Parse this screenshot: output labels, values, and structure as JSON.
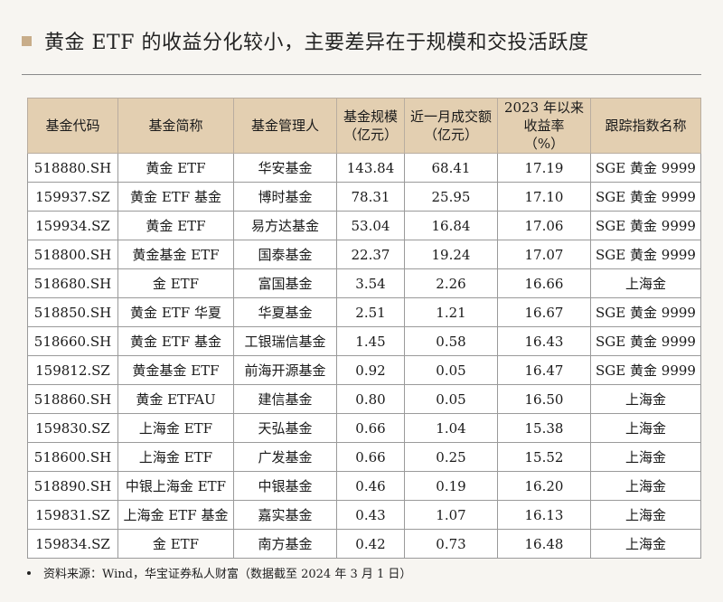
{
  "title": "黄金 ETF 的收益分化较小，主要差异在于规模和交投活跃度",
  "table": {
    "headers": [
      "基金代码",
      "基金简称",
      "基金管理人",
      "基金规模（亿元）",
      "近一月成交额（亿元）",
      "2023 年以来收益率（%）",
      "跟踪指数名称"
    ],
    "rows": [
      [
        "518880.SH",
        "黄金 ETF",
        "华安基金",
        "143.84",
        "68.41",
        "17.19",
        "SGE 黄金 9999"
      ],
      [
        "159937.SZ",
        "黄金 ETF 基金",
        "博时基金",
        "78.31",
        "25.95",
        "17.10",
        "SGE 黄金 9999"
      ],
      [
        "159934.SZ",
        "黄金 ETF",
        "易方达基金",
        "53.04",
        "16.84",
        "17.06",
        "SGE 黄金 9999"
      ],
      [
        "518800.SH",
        "黄金基金 ETF",
        "国泰基金",
        "22.37",
        "19.24",
        "17.07",
        "SGE 黄金 9999"
      ],
      [
        "518680.SH",
        "金 ETF",
        "富国基金",
        "3.54",
        "2.26",
        "16.66",
        "上海金"
      ],
      [
        "518850.SH",
        "黄金 ETF 华夏",
        "华夏基金",
        "2.51",
        "1.21",
        "16.67",
        "SGE 黄金 9999"
      ],
      [
        "518660.SH",
        "黄金 ETF 基金",
        "工银瑞信基金",
        "1.45",
        "0.58",
        "16.43",
        "SGE 黄金 9999"
      ],
      [
        "159812.SZ",
        "黄金基金 ETF",
        "前海开源基金",
        "0.92",
        "0.05",
        "16.47",
        "SGE 黄金 9999"
      ],
      [
        "518860.SH",
        "黄金 ETFAU",
        "建信基金",
        "0.80",
        "0.05",
        "16.50",
        "上海金"
      ],
      [
        "159830.SZ",
        "上海金 ETF",
        "天弘基金",
        "0.66",
        "1.04",
        "15.38",
        "上海金"
      ],
      [
        "518600.SH",
        "上海金 ETF",
        "广发基金",
        "0.66",
        "0.25",
        "15.52",
        "上海金"
      ],
      [
        "518890.SH",
        "中银上海金 ETF",
        "中银基金",
        "0.46",
        "0.19",
        "16.20",
        "上海金"
      ],
      [
        "159831.SZ",
        "上海金 ETF 基金",
        "嘉实基金",
        "0.43",
        "1.07",
        "16.13",
        "上海金"
      ],
      [
        "159834.SZ",
        "金 ETF",
        "南方基金",
        "0.42",
        "0.73",
        "16.48",
        "上海金"
      ]
    ]
  },
  "footnote": "资料来源：Wind，华宝证券私人财富（数据截至 2024 年 3 月 1 日）"
}
